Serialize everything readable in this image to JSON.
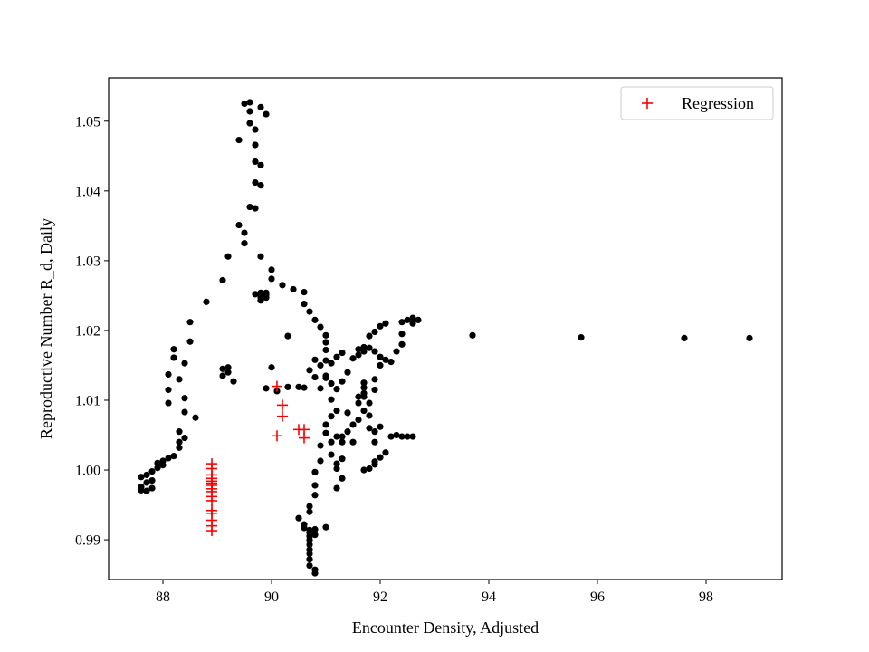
{
  "chart_data": {
    "type": "scatter",
    "title": "",
    "xlabel": "Encounter Density, Adjusted",
    "ylabel": "Reproductive Number R_d, Daily",
    "xlim": [
      87.0,
      99.4
    ],
    "ylim": [
      0.9843,
      1.0562
    ],
    "xticks": [
      88,
      90,
      92,
      94,
      96,
      98
    ],
    "yticks": [
      0.99,
      1.0,
      1.01,
      1.02,
      1.03,
      1.04,
      1.05
    ],
    "grid": false,
    "legend": {
      "placement": "top-right",
      "entries": [
        "Regression"
      ]
    },
    "series": [
      {
        "name": "",
        "marker": "dot",
        "color": "#000000",
        "points": [
          [
            87.6,
            0.999
          ],
          [
            87.6,
            0.9976
          ],
          [
            87.6,
            0.9971
          ],
          [
            87.7,
            0.9982
          ],
          [
            87.7,
            0.9993
          ],
          [
            87.7,
            0.997
          ],
          [
            87.8,
            0.9998
          ],
          [
            87.8,
            0.9985
          ],
          [
            87.8,
            0.9974
          ],
          [
            87.9,
            1.0003
          ],
          [
            87.9,
            1.001
          ],
          [
            88.0,
            1.0013
          ],
          [
            88.0,
            1.0007
          ],
          [
            88.1,
            1.0017
          ],
          [
            88.2,
            1.002
          ],
          [
            88.3,
            1.0032
          ],
          [
            88.3,
            1.004
          ],
          [
            88.3,
            1.0055
          ],
          [
            88.4,
            1.0046
          ],
          [
            88.6,
            1.0075
          ],
          [
            88.4,
            1.0083
          ],
          [
            88.4,
            1.0103
          ],
          [
            88.1,
            1.0096
          ],
          [
            88.1,
            1.0115
          ],
          [
            88.3,
            1.013
          ],
          [
            88.1,
            1.0137
          ],
          [
            88.4,
            1.0153
          ],
          [
            88.2,
            1.0161
          ],
          [
            88.2,
            1.0173
          ],
          [
            88.5,
            1.0184
          ],
          [
            88.5,
            1.0212
          ],
          [
            88.8,
            1.0241
          ],
          [
            89.1,
            1.0272
          ],
          [
            89.2,
            1.0306
          ],
          [
            89.1,
            1.0145
          ],
          [
            89.2,
            1.014
          ],
          [
            89.2,
            1.0147
          ],
          [
            89.3,
            1.0127
          ],
          [
            89.1,
            1.0135
          ],
          [
            89.4,
            1.0351
          ],
          [
            89.5,
            1.034
          ],
          [
            89.5,
            1.0325
          ],
          [
            89.4,
            1.0473
          ],
          [
            89.5,
            1.0525
          ],
          [
            89.6,
            1.0527
          ],
          [
            89.6,
            1.0514
          ],
          [
            89.6,
            1.0497
          ],
          [
            89.7,
            1.0488
          ],
          [
            89.7,
            1.0466
          ],
          [
            89.7,
            1.0442
          ],
          [
            89.8,
            1.0437
          ],
          [
            89.8,
            1.052
          ],
          [
            89.9,
            1.051
          ],
          [
            89.6,
            1.0377
          ],
          [
            89.7,
            1.0375
          ],
          [
            89.7,
            1.0412
          ],
          [
            89.8,
            1.0408
          ],
          [
            89.8,
            1.0306
          ],
          [
            89.7,
            1.0252
          ],
          [
            89.8,
            1.0254
          ],
          [
            89.8,
            1.0247
          ],
          [
            89.8,
            1.0252
          ],
          [
            89.8,
            1.0252
          ],
          [
            89.9,
            1.0254
          ],
          [
            89.8,
            1.0243
          ],
          [
            89.9,
            1.0247
          ],
          [
            89.9,
            1.0251
          ],
          [
            90.0,
            1.0287
          ],
          [
            90.0,
            1.0274
          ],
          [
            90.2,
            1.0265
          ],
          [
            90.4,
            1.0259
          ],
          [
            90.6,
            1.0255
          ],
          [
            90.6,
            1.0238
          ],
          [
            90.7,
            1.0227
          ],
          [
            90.8,
            1.0215
          ],
          [
            90.9,
            1.0205
          ],
          [
            91.0,
            1.0193
          ],
          [
            90.3,
            1.0192
          ],
          [
            90.0,
            1.0147
          ],
          [
            89.9,
            1.0117
          ],
          [
            90.1,
            1.0113
          ],
          [
            90.3,
            1.0119
          ],
          [
            90.5,
            1.0119
          ],
          [
            90.6,
            1.0118
          ],
          [
            90.7,
            1.0143
          ],
          [
            90.8,
            1.0133
          ],
          [
            90.9,
            1.0117
          ],
          [
            90.9,
            1.015
          ],
          [
            90.8,
            1.0158
          ],
          [
            91.0,
            1.0157
          ],
          [
            91.0,
            1.0172
          ],
          [
            91.0,
            1.0183
          ],
          [
            91.0,
            1.0135
          ],
          [
            91.1,
            1.0124
          ],
          [
            91.2,
            1.0116
          ],
          [
            91.3,
            1.0127
          ],
          [
            91.4,
            1.014
          ],
          [
            91.1,
            1.0153
          ],
          [
            91.2,
            1.0162
          ],
          [
            91.3,
            1.0168
          ],
          [
            91.0,
            1.0132
          ],
          [
            91.1,
            1.0101
          ],
          [
            91.2,
            1.0085
          ],
          [
            91.1,
            1.0077
          ],
          [
            91.0,
            1.0065
          ],
          [
            91.0,
            1.0053
          ],
          [
            90.9,
            1.0035
          ],
          [
            90.9,
            1.0013
          ],
          [
            91.1,
            1.004
          ],
          [
            91.1,
            1.0022
          ],
          [
            91.2,
            1.0009
          ],
          [
            91.2,
            1.0002
          ],
          [
            91.3,
            1.0016
          ],
          [
            91.3,
            0.9988
          ],
          [
            91.2,
            0.9974
          ],
          [
            90.8,
            0.9997
          ],
          [
            90.8,
            0.9978
          ],
          [
            90.8,
            0.9964
          ],
          [
            90.7,
            0.9948
          ],
          [
            90.7,
            0.994
          ],
          [
            90.5,
            0.9931
          ],
          [
            90.6,
            0.9922
          ],
          [
            90.6,
            0.9917
          ],
          [
            90.7,
            0.9914
          ],
          [
            90.7,
            0.991
          ],
          [
            90.7,
            0.9905
          ],
          [
            90.7,
            0.99
          ],
          [
            90.7,
            0.9893
          ],
          [
            90.7,
            0.9886
          ],
          [
            90.7,
            0.988
          ],
          [
            90.7,
            0.9872
          ],
          [
            90.7,
            0.9863
          ],
          [
            90.8,
            0.9857
          ],
          [
            90.8,
            0.9852
          ],
          [
            90.8,
            0.9915
          ],
          [
            90.8,
            0.9907
          ],
          [
            91.0,
            0.9918
          ],
          [
            91.2,
            1.0048
          ],
          [
            91.3,
            1.004
          ],
          [
            91.3,
            1.0048
          ],
          [
            91.4,
            1.0055
          ],
          [
            91.5,
            1.0065
          ],
          [
            91.5,
            1.004
          ],
          [
            91.6,
            1.0072
          ],
          [
            91.4,
            1.0082
          ],
          [
            91.6,
            1.0105
          ],
          [
            91.6,
            1.0096
          ],
          [
            91.7,
            1.0105
          ],
          [
            91.7,
            1.011
          ],
          [
            91.8,
            1.0096
          ],
          [
            91.7,
            1.0085
          ],
          [
            91.7,
            1.0125
          ],
          [
            91.7,
            1.0118
          ],
          [
            91.9,
            1.0115
          ],
          [
            91.9,
            1.013
          ],
          [
            92.0,
            1.015
          ],
          [
            92.1,
            1.0158
          ],
          [
            92.2,
            1.0155
          ],
          [
            92.0,
            1.0162
          ],
          [
            91.9,
            1.017
          ],
          [
            91.8,
            1.0175
          ],
          [
            91.7,
            1.017
          ],
          [
            91.6,
            1.0165
          ],
          [
            91.5,
            1.016
          ],
          [
            91.6,
            1.0173
          ],
          [
            91.7,
            1.0176
          ],
          [
            91.8,
            1.0192
          ],
          [
            91.9,
            1.0198
          ],
          [
            92.0,
            1.0206
          ],
          [
            92.1,
            1.021
          ],
          [
            92.3,
            1.017
          ],
          [
            92.4,
            1.018
          ],
          [
            92.4,
            1.0195
          ],
          [
            92.4,
            1.0212
          ],
          [
            92.5,
            1.0215
          ],
          [
            92.6,
            1.021
          ],
          [
            92.6,
            1.0218
          ],
          [
            92.7,
            1.0215
          ],
          [
            91.7,
            1.0
          ],
          [
            91.8,
            1.0002
          ],
          [
            91.9,
            1.0008
          ],
          [
            91.9,
            1.0012
          ],
          [
            92.0,
            1.0018
          ],
          [
            92.1,
            1.0025
          ],
          [
            92.2,
            1.0048
          ],
          [
            92.3,
            1.005
          ],
          [
            92.4,
            1.0048
          ],
          [
            92.5,
            1.0048
          ],
          [
            92.6,
            1.0048
          ],
          [
            91.9,
            1.004
          ],
          [
            91.8,
            1.006
          ],
          [
            91.9,
            1.0055
          ],
          [
            92.0,
            1.0062
          ],
          [
            91.8,
            1.0078
          ],
          [
            93.7,
            1.0193
          ],
          [
            95.7,
            1.019
          ],
          [
            97.6,
            1.0189
          ],
          [
            98.8,
            1.0189
          ]
        ]
      },
      {
        "name": "Regression",
        "marker": "plus",
        "color": "#ff0000",
        "points": [
          [
            90.1,
            1.012
          ],
          [
            90.2,
            1.0093
          ],
          [
            90.2,
            1.0077
          ],
          [
            90.1,
            1.0049
          ],
          [
            90.5,
            1.0058
          ],
          [
            90.6,
            1.0058
          ],
          [
            90.6,
            1.0046
          ],
          [
            88.9,
            1.0009
          ],
          [
            88.9,
            1.0002
          ],
          [
            88.9,
            0.9993
          ],
          [
            88.9,
            0.9988
          ],
          [
            88.9,
            0.9984
          ],
          [
            88.9,
            0.9981
          ],
          [
            88.9,
            0.9978
          ],
          [
            88.9,
            0.9973
          ],
          [
            88.9,
            0.9969
          ],
          [
            88.9,
            0.9962
          ],
          [
            88.9,
            0.9956
          ],
          [
            88.9,
            0.9942
          ],
          [
            88.9,
            0.9938
          ],
          [
            88.9,
            0.9928
          ],
          [
            88.9,
            0.992
          ],
          [
            88.9,
            0.9913
          ]
        ]
      }
    ]
  }
}
